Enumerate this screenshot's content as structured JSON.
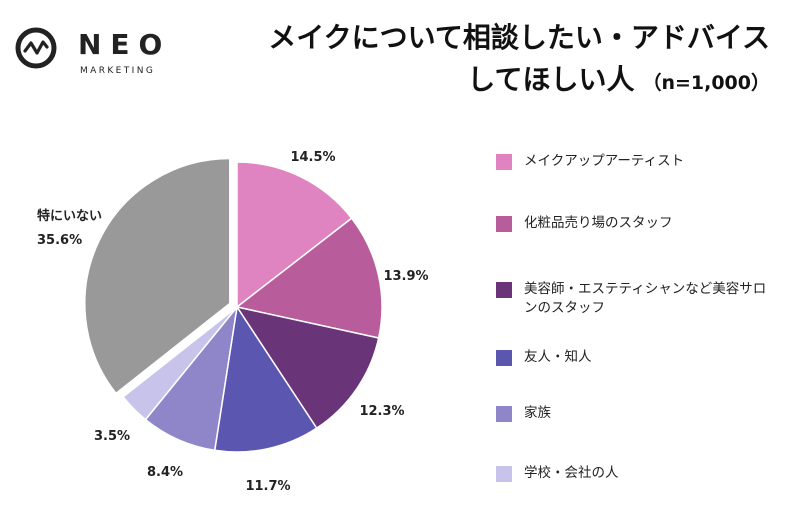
{
  "brand": {
    "name": "NEO",
    "sub": "MARKETING"
  },
  "title": {
    "line1": "メイクについて相談したい・アドバイス",
    "line2": "してほしい人",
    "n": "（n=1,000）"
  },
  "chart_data": {
    "type": "pie",
    "start_angle_deg": 0,
    "direction": "clockwise",
    "exploded_slice": "特にいない",
    "slices": [
      {
        "label": "メイクアップアーティスト",
        "value": 14.5,
        "value_label": "14.5%",
        "color": "#df84c0",
        "in_legend": true
      },
      {
        "label": "化粧品売り場のスタッフ",
        "value": 13.9,
        "value_label": "13.9%",
        "color": "#b85c9c",
        "in_legend": true
      },
      {
        "label": "美容師・エステティシャンなど美容サロンのスタッフ",
        "value": 12.3,
        "value_label": "12.3%",
        "color": "#6a3478",
        "in_legend": true
      },
      {
        "label": "友人・知人",
        "value": 11.7,
        "value_label": "11.7%",
        "color": "#5b56b0",
        "in_legend": true
      },
      {
        "label": "家族",
        "value": 8.4,
        "value_label": "8.4%",
        "color": "#8e86c8",
        "in_legend": true
      },
      {
        "label": "学校・会社の人",
        "value": 3.5,
        "value_label": "3.5%",
        "color": "#c7c3ea",
        "in_legend": true
      },
      {
        "label": "特にいない",
        "value": 35.6,
        "value_label": "35.6%",
        "color": "#999999",
        "in_legend": false
      }
    ],
    "legend_position": "right"
  }
}
